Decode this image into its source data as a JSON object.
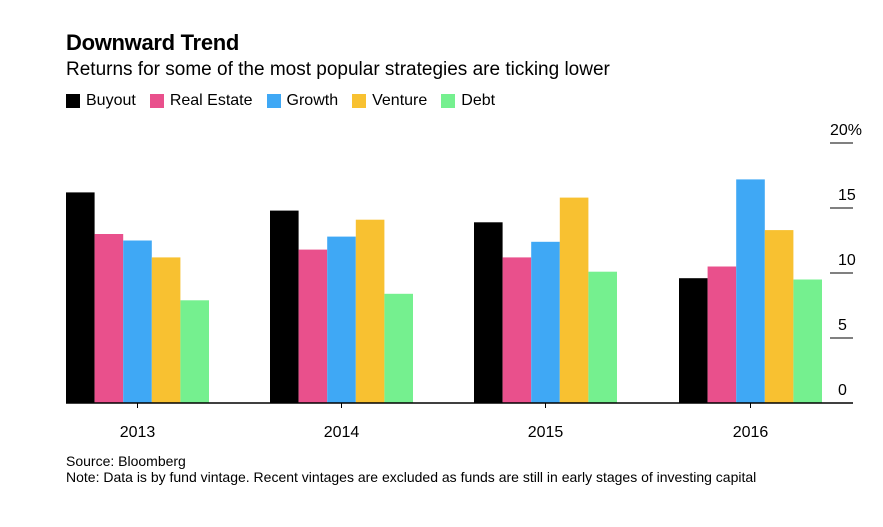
{
  "chart_data": {
    "type": "bar",
    "title": "Downward Trend",
    "subtitle": "Returns for some of the most popular strategies are ticking lower",
    "categories": [
      "2013",
      "2014",
      "2015",
      "2016"
    ],
    "series": [
      {
        "name": "Buyout",
        "color": "#000000",
        "values": [
          16.2,
          14.8,
          13.9,
          9.6
        ]
      },
      {
        "name": "Real Estate",
        "color": "#e9508c",
        "values": [
          13.0,
          11.8,
          11.2,
          10.5
        ]
      },
      {
        "name": "Growth",
        "color": "#3fa8f5",
        "values": [
          12.5,
          12.8,
          12.4,
          17.2
        ]
      },
      {
        "name": "Venture",
        "color": "#f8c131",
        "values": [
          11.2,
          14.1,
          15.8,
          13.3
        ]
      },
      {
        "name": "Debt",
        "color": "#75f08f",
        "values": [
          7.9,
          8.4,
          10.1,
          9.5
        ]
      }
    ],
    "y_ticks": [
      "20%",
      "15",
      "10",
      "5",
      "0"
    ],
    "ylim": [
      0,
      20
    ],
    "xlabel": "",
    "ylabel": "",
    "grid": false,
    "legend_position": "top-left",
    "y_axis_side": "right"
  },
  "footer": {
    "source": "Source: Bloomberg",
    "note": "Note: Data is by fund vintage. Recent vintages are excluded as funds are still in early stages of investing capital"
  }
}
